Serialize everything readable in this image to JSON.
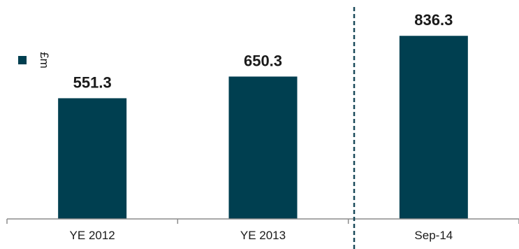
{
  "chart_data": {
    "type": "bar",
    "categories": [
      "YE 2012",
      "YE 2013",
      "Sep-14"
    ],
    "values": [
      551.3,
      650.3,
      836.3
    ],
    "value_labels": [
      "551.3",
      "650.3",
      "836.3"
    ],
    "ylim": [
      0,
      1000
    ],
    "grid": false,
    "legend": {
      "entries": [
        {
          "label": "£m",
          "color": "#003f50"
        }
      ],
      "placement": "top-left"
    },
    "separator_after_category": 1,
    "colors": {
      "bar": "#003f50",
      "axis": "#8c8c8c",
      "separator": "#1a4a5a",
      "text": "#1a1a1a"
    }
  }
}
